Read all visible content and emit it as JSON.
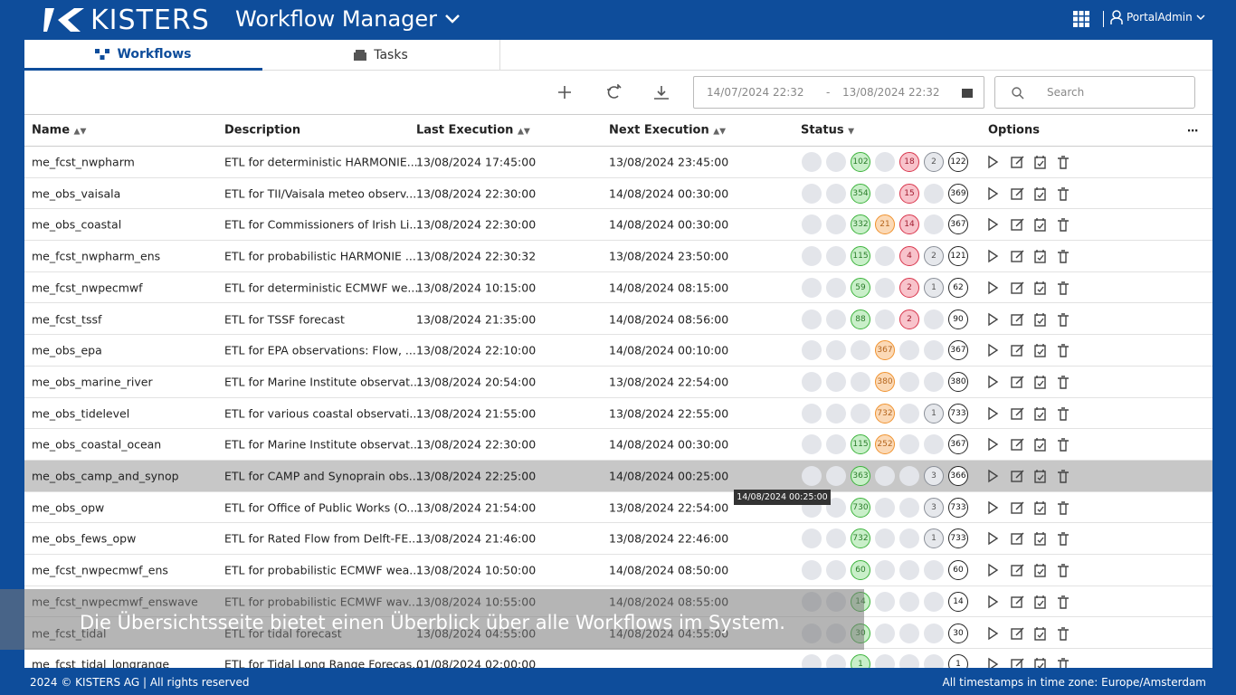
{
  "header": {
    "logo": "KISTERS",
    "app_title": "Workflow Manager",
    "user": "PortalAdmin"
  },
  "tabs": [
    "Workflows",
    "Tasks"
  ],
  "toolbar": {
    "date_from": "14/07/2024 22:32",
    "date_separator": "-",
    "date_to": "13/08/2024 22:32",
    "search_placeholder": "Search"
  },
  "table": {
    "columns": [
      "Name",
      "Description",
      "Last Execution",
      "Next Execution",
      "Status",
      "Options"
    ],
    "rows": [
      {
        "name": "me_fcst_nwpharm",
        "description": "ETL for deterministic HARMONIE...",
        "last": "13/08/2024 17:45:00",
        "next": "13/08/2024 23:45:00",
        "status": [
          102,
          null,
          18,
          2,
          122
        ]
      },
      {
        "name": "me_obs_vaisala",
        "description": "ETL for TII/Vaisala meteo observ...",
        "last": "13/08/2024 22:30:00",
        "next": "14/08/2024 00:30:00",
        "status": [
          354,
          null,
          15,
          null,
          369
        ]
      },
      {
        "name": "me_obs_coastal",
        "description": "ETL for Commissioners of Irish Li...",
        "last": "13/08/2024 22:30:00",
        "next": "14/08/2024 00:30:00",
        "status": [
          332,
          21,
          14,
          null,
          367
        ]
      },
      {
        "name": "me_fcst_nwpharm_ens",
        "description": "ETL for probabilistic HARMONIE ...",
        "last": "13/08/2024 22:30:32",
        "next": "13/08/2024 23:50:00",
        "status": [
          115,
          null,
          4,
          2,
          121
        ]
      },
      {
        "name": "me_fcst_nwpecmwf",
        "description": "ETL for deterministic ECMWF we...",
        "last": "13/08/2024 10:15:00",
        "next": "14/08/2024 08:15:00",
        "status": [
          59,
          null,
          2,
          1,
          62
        ]
      },
      {
        "name": "me_fcst_tssf",
        "description": "ETL for TSSF forecast",
        "last": "13/08/2024 21:35:00",
        "next": "14/08/2024 08:56:00",
        "status": [
          88,
          null,
          2,
          null,
          90
        ]
      },
      {
        "name": "me_obs_epa",
        "description": "ETL for EPA observations: Flow, ...",
        "last": "13/08/2024 22:10:00",
        "next": "14/08/2024 00:10:00",
        "status": [
          null,
          367,
          null,
          null,
          367
        ]
      },
      {
        "name": "me_obs_marine_river",
        "description": "ETL for Marine Institute observat...",
        "last": "13/08/2024 20:54:00",
        "next": "13/08/2024 22:54:00",
        "status": [
          null,
          380,
          null,
          null,
          380
        ]
      },
      {
        "name": "me_obs_tidelevel",
        "description": "ETL for various coastal observati...",
        "last": "13/08/2024 21:55:00",
        "next": "13/08/2024 22:55:00",
        "status": [
          null,
          732,
          null,
          1,
          733
        ]
      },
      {
        "name": "me_obs_coastal_ocean",
        "description": "ETL for Marine Institute observat...",
        "last": "13/08/2024 22:30:00",
        "next": "14/08/2024 00:30:00",
        "status": [
          115,
          252,
          null,
          null,
          367
        ]
      },
      {
        "name": "me_obs_camp_and_synop",
        "description": "ETL for CAMP and Synoprain obs...",
        "last": "13/08/2024 22:25:00",
        "next": "14/08/2024 00:25:00",
        "status": [
          363,
          null,
          null,
          3,
          366
        ]
      },
      {
        "name": "me_obs_opw",
        "description": "ETL for Office of Public Works (O...",
        "last": "13/08/2024 21:54:00",
        "next": "13/08/2024 22:54:00",
        "status": [
          730,
          null,
          null,
          3,
          733
        ]
      },
      {
        "name": "me_obs_fews_opw",
        "description": "ETL for Rated Flow from Delft-FE...",
        "last": "13/08/2024 21:46:00",
        "next": "13/08/2024 22:46:00",
        "status": [
          732,
          null,
          null,
          1,
          733
        ]
      },
      {
        "name": "me_fcst_nwpecmwf_ens",
        "description": "ETL for probabilistic ECMWF wea...",
        "last": "13/08/2024 10:50:00",
        "next": "14/08/2024 08:50:00",
        "status": [
          60,
          null,
          null,
          null,
          60
        ]
      },
      {
        "name": "me_fcst_nwpecmwf_enswave",
        "description": "ETL for probabilistic ECMWF wav...",
        "last": "13/08/2024 10:55:00",
        "next": "14/08/2024 08:55:00",
        "status": [
          14,
          null,
          null,
          null,
          14
        ]
      },
      {
        "name": "me_fcst_tidal",
        "description": "ETL for tidal forecast",
        "last": "13/08/2024 04:55:00",
        "next": "14/08/2024 04:55:00",
        "status": [
          30,
          null,
          null,
          null,
          30
        ]
      },
      {
        "name": "me_fcst_tidal_longrange",
        "description": "ETL for Tidal Long Range Forecas...",
        "last": "01/08/2024 02:00:00",
        "next": null,
        "status": [
          1,
          null,
          null,
          null,
          1
        ]
      }
    ]
  },
  "tooltip": "14/08/2024 00:25:00",
  "caption": "Die Übersichtsseite bietet einen Überblick über alle Workflows im System.",
  "footer": {
    "copyright": "2024 © KISTERS AG | All rights reserved",
    "timezone": "All timestamps in time zone: Europe/Amsterdam"
  }
}
